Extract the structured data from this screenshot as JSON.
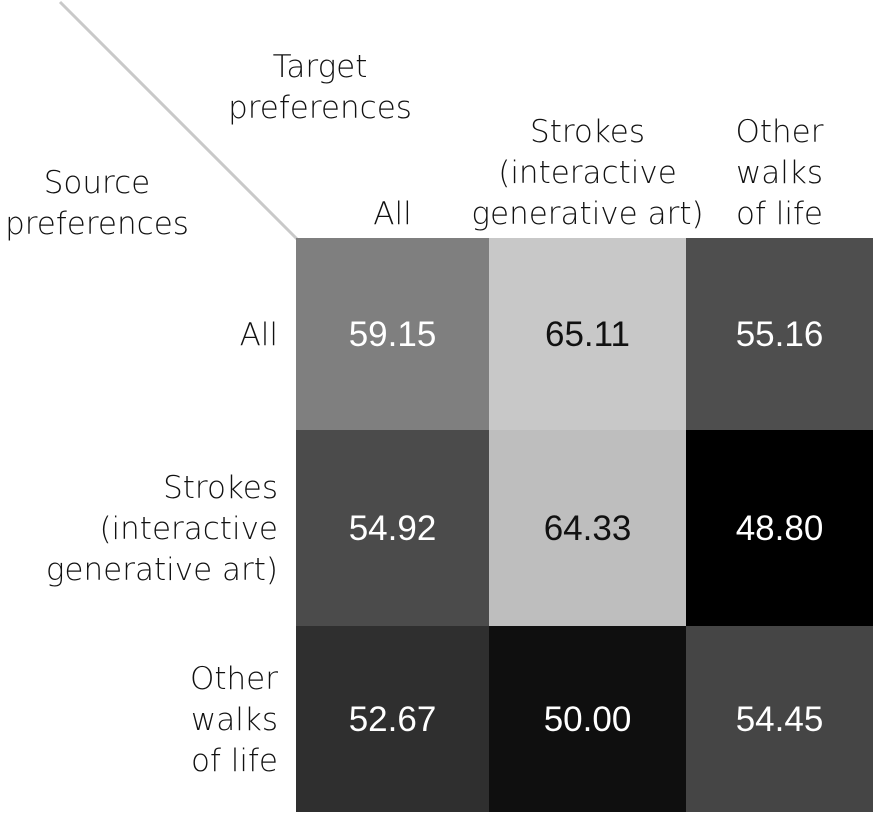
{
  "chart_data": {
    "type": "heatmap",
    "corner": {
      "col_header": [
        "Target",
        "preferences"
      ],
      "row_header": [
        "Source",
        "preferences"
      ]
    },
    "columns": [
      {
        "label_lines": [
          "All"
        ]
      },
      {
        "label_lines": [
          "Strokes",
          "(interactive",
          "generative art)"
        ]
      },
      {
        "label_lines": [
          "Other",
          "walks",
          "of life"
        ]
      }
    ],
    "rows": [
      {
        "label_lines": [
          "All"
        ]
      },
      {
        "label_lines": [
          "Strokes",
          "(interactive",
          "generative art)"
        ]
      },
      {
        "label_lines": [
          "Other",
          "walks",
          "of life"
        ]
      }
    ],
    "values": [
      [
        "59.15",
        "65.11",
        "55.16"
      ],
      [
        "54.92",
        "64.33",
        "48.80"
      ],
      [
        "52.67",
        "50.00",
        "54.45"
      ]
    ],
    "colormap": "grayscale",
    "value_range": [
      48.8,
      65.11
    ],
    "colors": {
      "low": "#000000",
      "high": "#c8c8c8",
      "text_light": "#ffffff",
      "text_dark": "#111111",
      "diagonal_line": "#c9c9c9"
    }
  }
}
